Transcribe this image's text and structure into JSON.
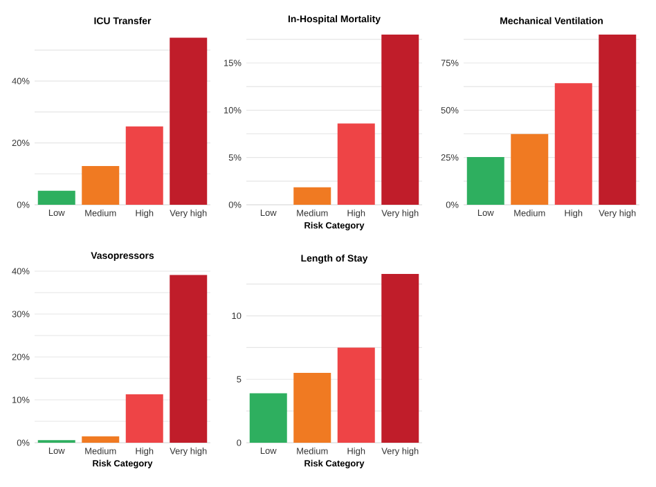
{
  "chart_data": [
    {
      "type": "bar",
      "title": "ICU Transfer",
      "categories": [
        "Low",
        "Medium",
        "High",
        "Very high"
      ],
      "values": [
        4.5,
        12.5,
        25.3,
        54
      ],
      "colors": [
        "#2eaf5f",
        "#f07a22",
        "#ee4446",
        "#c01d2a"
      ],
      "ylim": [
        0,
        55
      ],
      "yticks": [
        {
          "value": 0,
          "label": "0%"
        },
        {
          "value": 10,
          "label": null
        },
        {
          "value": 20,
          "label": "20%"
        },
        {
          "value": 30,
          "label": null
        },
        {
          "value": 40,
          "label": "40%"
        },
        {
          "value": 50,
          "label": null
        }
      ],
      "grid": "y"
    },
    {
      "type": "bar",
      "title": "In-Hospital Mortality",
      "xlabel": "Risk Category",
      "categories": [
        "Low",
        "Medium",
        "High",
        "Very high"
      ],
      "values": [
        0,
        1.85,
        8.6,
        18
      ],
      "colors": [
        "#2eaf5f",
        "#f07a22",
        "#ee4446",
        "#c01d2a"
      ],
      "ylim": [
        0,
        18
      ],
      "yticks": [
        {
          "value": 0,
          "label": "0%"
        },
        {
          "value": 2.5,
          "label": null
        },
        {
          "value": 5,
          "label": "5%"
        },
        {
          "value": 7.5,
          "label": null
        },
        {
          "value": 10,
          "label": "10%"
        },
        {
          "value": 12.5,
          "label": null
        },
        {
          "value": 15,
          "label": "15%"
        },
        {
          "value": 17.5,
          "label": null
        }
      ],
      "grid": "y"
    },
    {
      "type": "bar",
      "title": "Mechanical Ventilation",
      "categories": [
        "Low",
        "Medium",
        "High",
        "Very high"
      ],
      "values": [
        25.2,
        37.4,
        64.3,
        90
      ],
      "colors": [
        "#2eaf5f",
        "#f07a22",
        "#ee4446",
        "#c01d2a"
      ],
      "ylim": [
        0,
        90
      ],
      "yticks": [
        {
          "value": 0,
          "label": "0%"
        },
        {
          "value": 12.5,
          "label": null
        },
        {
          "value": 25,
          "label": "25%"
        },
        {
          "value": 37.5,
          "label": null
        },
        {
          "value": 50,
          "label": "50%"
        },
        {
          "value": 62.5,
          "label": null
        },
        {
          "value": 75,
          "label": "75%"
        },
        {
          "value": 87.5,
          "label": null
        }
      ],
      "grid": "y"
    },
    {
      "type": "bar",
      "title": "Vasopressors",
      "xlabel": "Risk Category",
      "categories": [
        "Low",
        "Medium",
        "High",
        "Very high"
      ],
      "values": [
        0.6,
        1.5,
        11.3,
        39.1
      ],
      "colors": [
        "#2eaf5f",
        "#f07a22",
        "#ee4446",
        "#c01d2a"
      ],
      "ylim": [
        0,
        40
      ],
      "yticks": [
        {
          "value": 0,
          "label": "0%"
        },
        {
          "value": 5,
          "label": null
        },
        {
          "value": 10,
          "label": "10%"
        },
        {
          "value": 15,
          "label": null
        },
        {
          "value": 20,
          "label": "20%"
        },
        {
          "value": 25,
          "label": null
        },
        {
          "value": 30,
          "label": "30%"
        },
        {
          "value": 35,
          "label": null
        },
        {
          "value": 40,
          "label": "40%"
        }
      ],
      "grid": "y"
    },
    {
      "type": "bar",
      "title": "Length of Stay",
      "xlabel": "Risk Category",
      "categories": [
        "Low",
        "Medium",
        "High",
        "Very high"
      ],
      "values": [
        3.9,
        5.5,
        7.5,
        13.3
      ],
      "colors": [
        "#2eaf5f",
        "#f07a22",
        "#ee4446",
        "#c01d2a"
      ],
      "ylim": [
        0,
        13.3
      ],
      "yticks": [
        0,
        {
          "value": 2.5,
          "label": null
        },
        5,
        {
          "value": 7.5,
          "label": null
        },
        10,
        {
          "value": 12.5,
          "label": null
        }
      ],
      "grid": "y"
    }
  ]
}
